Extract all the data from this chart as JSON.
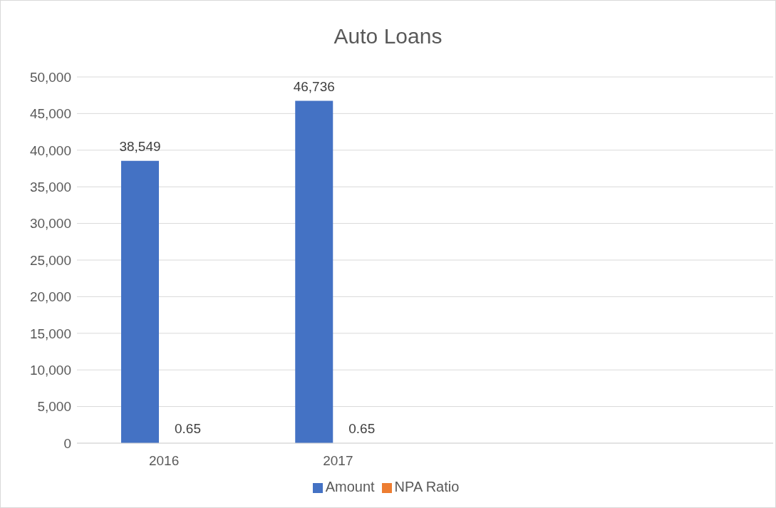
{
  "chart_data": {
    "type": "bar",
    "title": "Auto Loans",
    "categories": [
      "2016",
      "2017",
      null,
      null
    ],
    "series": [
      {
        "name": "Amount",
        "color": "#4472c4",
        "values": [
          38549,
          46736,
          null,
          null
        ],
        "value_labels": [
          "38,549",
          "46,736",
          null,
          null
        ]
      },
      {
        "name": "NPA Ratio",
        "color": "#ed7d31",
        "values": [
          0.65,
          0.65,
          null,
          null
        ],
        "value_labels": [
          "0.65",
          "0.65",
          null,
          null
        ]
      }
    ],
    "ylim": [
      0,
      50000
    ],
    "yticks": [
      {
        "value": 0,
        "label": "0"
      },
      {
        "value": 5000,
        "label": "5,000"
      },
      {
        "value": 10000,
        "label": "10,000"
      },
      {
        "value": 15000,
        "label": "15,000"
      },
      {
        "value": 20000,
        "label": "20,000"
      },
      {
        "value": 25000,
        "label": "25,000"
      },
      {
        "value": 30000,
        "label": "30,000"
      },
      {
        "value": 35000,
        "label": "35,000"
      },
      {
        "value": 40000,
        "label": "40,000"
      },
      {
        "value": 45000,
        "label": "45,000"
      },
      {
        "value": 50000,
        "label": "50,000"
      }
    ],
    "grid": "y",
    "legend": "bottom"
  }
}
